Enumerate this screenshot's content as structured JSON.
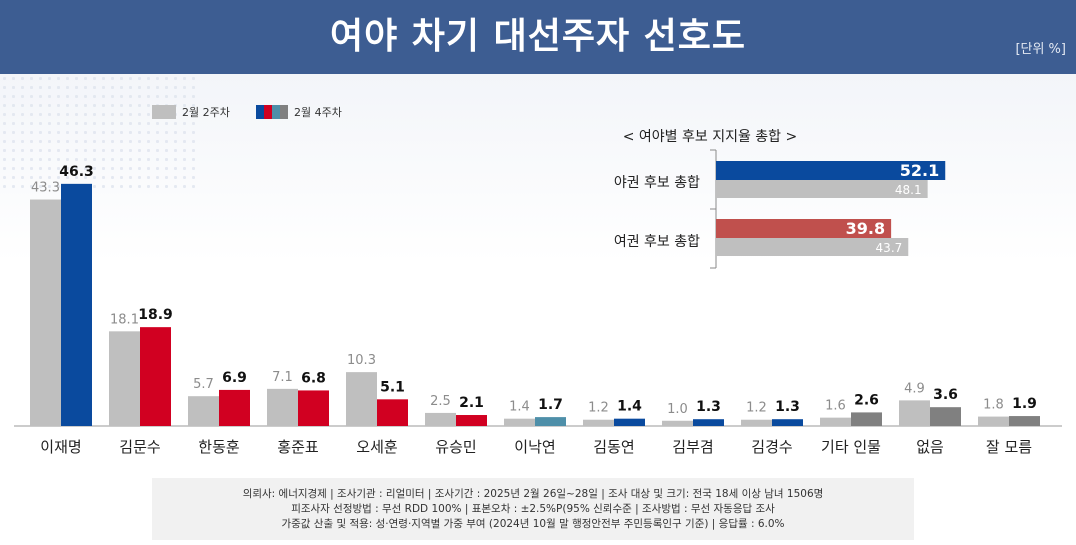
{
  "header": {
    "title": "여야 차기 대선주자 선호도",
    "unit": "[단위 %]"
  },
  "legend": {
    "prev": "2월 2주차",
    "curr": "2월 4주차"
  },
  "colors": {
    "prev": "#bfbfbf",
    "curr_default": "#808080",
    "opposition": "#0a4a9e",
    "ruling": "#d10021",
    "neutral": "#808080",
    "teal": "#4e8fa9",
    "header_bg": "#3d5d92"
  },
  "chart_data": [
    {
      "type": "bar",
      "title": "여야 차기 대선주자 선호도",
      "categories": [
        "이재명",
        "김문수",
        "한동훈",
        "홍준표",
        "오세훈",
        "유승민",
        "이낙연",
        "김동연",
        "김부겸",
        "김경수",
        "기타 인물",
        "없음",
        "잘 모름"
      ],
      "series": [
        {
          "name": "2월 2주차",
          "values": [
            43.3,
            18.1,
            5.7,
            7.1,
            10.3,
            2.5,
            1.4,
            1.2,
            1.0,
            1.2,
            1.6,
            4.9,
            1.8
          ]
        },
        {
          "name": "2월 4주차",
          "values": [
            46.3,
            18.9,
            6.9,
            6.8,
            5.1,
            2.1,
            1.7,
            1.4,
            1.3,
            1.3,
            2.6,
            3.6,
            1.9
          ],
          "colors": [
            "#0a4a9e",
            "#d10021",
            "#d10021",
            "#d10021",
            "#d10021",
            "#d10021",
            "#4e8fa9",
            "#0a4a9e",
            "#0a4a9e",
            "#0a4a9e",
            "#808080",
            "#808080",
            "#808080"
          ]
        }
      ],
      "labels": [
        "43.3",
        "18.1",
        "5.7",
        "7.1",
        "10.3",
        "2.5",
        "1.4",
        "1.2",
        "1.0",
        "1.2",
        "1.6",
        "4.9",
        "1.8"
      ],
      "labels_curr": [
        "46.3",
        "18.9",
        "6.9",
        "6.8",
        "5.1",
        "2.1",
        "1.7",
        "1.4",
        "1.3",
        "1.3",
        "2.6",
        "3.6",
        "1.9"
      ],
      "ylim": [
        0,
        50
      ]
    },
    {
      "type": "bar",
      "orientation": "horizontal",
      "title": "< 여야별 후보 지지율 총합 >",
      "categories": [
        "야권 후보 총합",
        "여권 후보 총합"
      ],
      "series": [
        {
          "name": "2월 4주차",
          "values": [
            52.1,
            39.8
          ],
          "labels": [
            "52.1",
            "39.8"
          ],
          "colors": [
            "#0a4a9e",
            "#c0504d"
          ]
        },
        {
          "name": "2월 2주차",
          "values": [
            48.1,
            43.7
          ],
          "labels": [
            "48.1",
            "43.7"
          ]
        }
      ],
      "xlim": [
        0,
        60
      ]
    }
  ],
  "footnote": {
    "line1": "의뢰사: 에너지경제 | 조사기관 : 리얼미터 | 조사기간 : 2025년 2월 26일~28일 | 조사 대상 및 크기: 전국 18세 이상 남녀 1506명",
    "line2": "피조사자 선정방법 : 무선 RDD 100% | 표본오차 : ±2.5%P(95% 신뢰수준 | 조사방법 : 무선 자동응답 조사",
    "line3": "가중값 산출 및 적용: 성·연령·지역별 가중 부여 (2024년 10월 말 행정안전부 주민등록인구 기준) | 응답률 : 6.0%"
  }
}
